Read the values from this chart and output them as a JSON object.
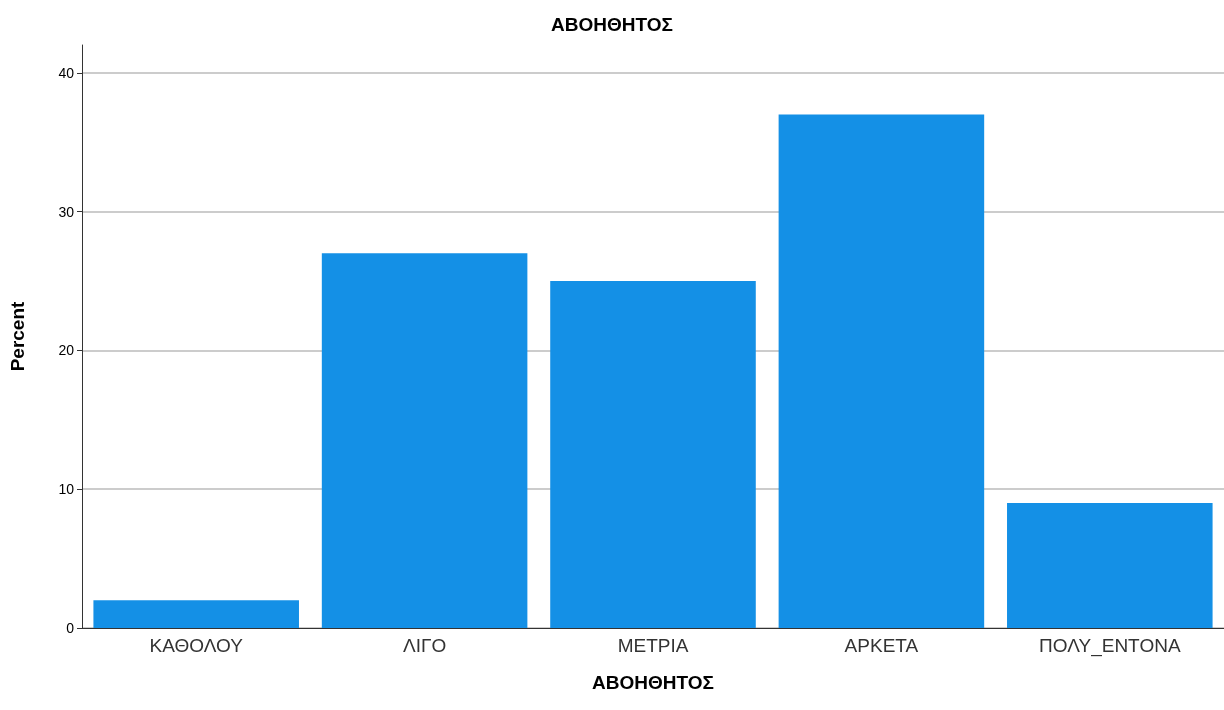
{
  "chart_data": {
    "type": "bar",
    "title": "ΑΒΟΗΘΗΤΟΣ",
    "xlabel": "ΑΒΟΗΘΗΤΟΣ",
    "ylabel": "Percent",
    "categories": [
      "ΚΑΘΟΛΟΥ",
      "ΛΙΓΟ",
      "ΜΕΤΡΙΑ",
      "ΑΡΚΕΤΑ",
      "ΠΟΛΥ_ΕΝΤΟΝΑ"
    ],
    "values": [
      2,
      27,
      25,
      37,
      9
    ],
    "color": "#1490e6",
    "ylim": [
      0,
      42
    ],
    "yticks": [
      0,
      10,
      20,
      30,
      40
    ],
    "grid": "y"
  }
}
